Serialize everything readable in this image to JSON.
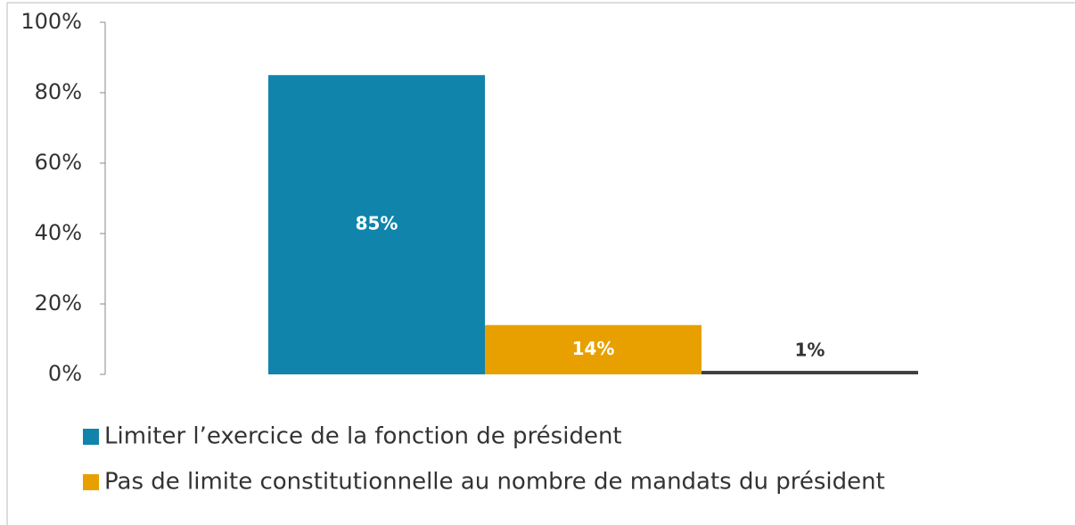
{
  "chart_data": {
    "type": "bar",
    "categories": [
      null
    ],
    "series": [
      {
        "name": "Limiter l’exercice de la fonction de président",
        "color": "#1084ab",
        "values": [
          85
        ],
        "value_labels": [
          "85%"
        ]
      },
      {
        "name": "Pas de limite constitutionnelle au nombre de mandats du président",
        "color": "#e8a000",
        "values": [
          14
        ],
        "value_labels": [
          "14%"
        ]
      },
      {
        "color": "#404040",
        "values": [
          1
        ],
        "value_labels": [
          "1%"
        ]
      }
    ],
    "ylim": [
      0,
      100
    ],
    "yticks": [
      {
        "value": 0,
        "label": "0%"
      },
      {
        "value": 20,
        "label": "20%"
      },
      {
        "value": 40,
        "label": "40%"
      },
      {
        "value": 60,
        "label": "60%"
      },
      {
        "value": 80,
        "label": "80%"
      },
      {
        "value": 100,
        "label": "100%"
      }
    ],
    "grid": false,
    "legend": "bottom"
  }
}
